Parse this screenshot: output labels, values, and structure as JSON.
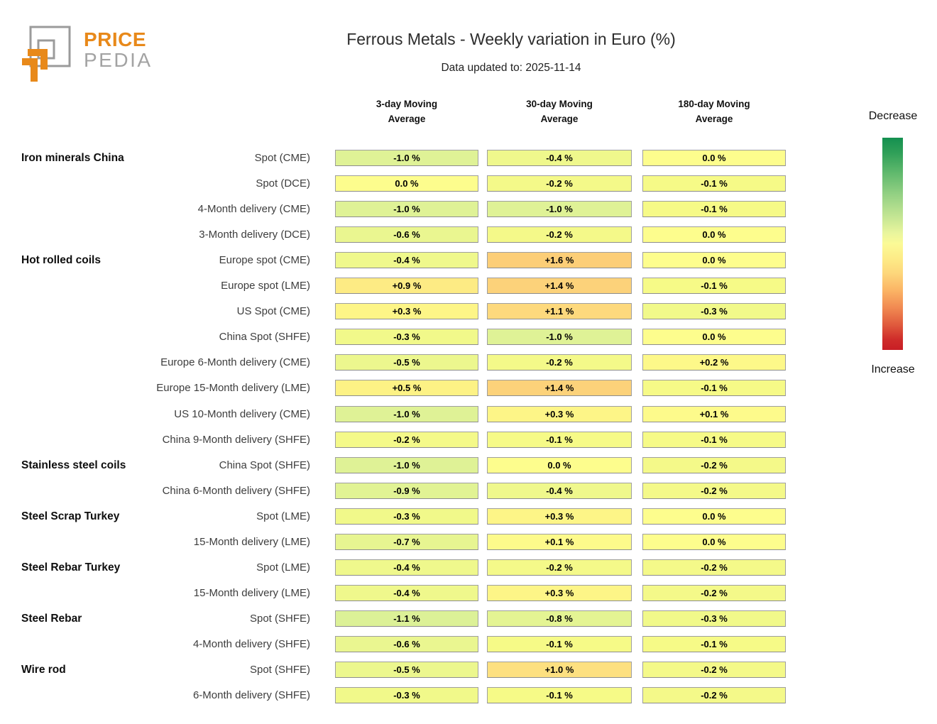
{
  "logo": {
    "line1": "PRICE",
    "line2": "PEDIA",
    "orange": "#e8891a",
    "gray": "#a3a3a3"
  },
  "header": {
    "title": "Ferrous Metals - Weekly variation in Euro (%)",
    "subtitle": "Data updated to: 2025-11-14"
  },
  "column_headers": [
    {
      "line1": "3-day Moving",
      "line2": "Average"
    },
    {
      "line1": "30-day Moving",
      "line2": "Average"
    },
    {
      "line1": "180-day Moving",
      "line2": "Average"
    }
  ],
  "legend": {
    "top_label": "Decrease",
    "bottom_label": "Increase"
  },
  "chart_data": {
    "type": "heatmap",
    "title": "Ferrous Metals - Weekly variation in Euro (%)",
    "subtitle": "Data updated to: 2025-11-14",
    "unit": "% weekly variation in Euro",
    "columns": [
      "3-day Moving Average",
      "30-day Moving Average",
      "180-day Moving Average"
    ],
    "colorscale": {
      "low_label": "Decrease",
      "high_label": "Increase",
      "low_color": "#18964f",
      "mid_color": "#fdfd8d",
      "high_color": "#c81e25",
      "legend_position": "right"
    },
    "rows": [
      {
        "group": "Iron minerals China",
        "label": "Spot (CME)",
        "values": [
          -1.0,
          -0.4,
          0.0
        ],
        "display": [
          "-1.0 %",
          "-0.4 %",
          "0.0 %"
        ]
      },
      {
        "group": "",
        "label": "Spot (DCE)",
        "values": [
          0.0,
          -0.2,
          -0.1
        ],
        "display": [
          "0.0 %",
          "-0.2 %",
          "-0.1 %"
        ]
      },
      {
        "group": "",
        "label": "4-Month delivery (CME)",
        "values": [
          -1.0,
          -1.0,
          -0.1
        ],
        "display": [
          "-1.0 %",
          "-1.0 %",
          "-0.1 %"
        ]
      },
      {
        "group": "",
        "label": "3-Month delivery (DCE)",
        "values": [
          -0.6,
          -0.2,
          0.0
        ],
        "display": [
          "-0.6 %",
          "-0.2 %",
          "0.0 %"
        ]
      },
      {
        "group": "Hot rolled coils",
        "label": "Europe spot (CME)",
        "values": [
          -0.4,
          1.6,
          0.0
        ],
        "display": [
          "-0.4 %",
          "+1.6 %",
          "0.0 %"
        ]
      },
      {
        "group": "",
        "label": "Europe spot (LME)",
        "values": [
          0.9,
          1.4,
          -0.1
        ],
        "display": [
          "+0.9 %",
          "+1.4 %",
          "-0.1 %"
        ]
      },
      {
        "group": "",
        "label": "US Spot (CME)",
        "values": [
          0.3,
          1.1,
          -0.3
        ],
        "display": [
          "+0.3 %",
          "+1.1 %",
          "-0.3 %"
        ]
      },
      {
        "group": "",
        "label": "China Spot (SHFE)",
        "values": [
          -0.3,
          -1.0,
          0.0
        ],
        "display": [
          "-0.3 %",
          "-1.0 %",
          "0.0 %"
        ]
      },
      {
        "group": "",
        "label": "Europe 6-Month delivery (CME)",
        "values": [
          -0.5,
          -0.2,
          0.2
        ],
        "display": [
          "-0.5 %",
          "-0.2 %",
          "+0.2 %"
        ]
      },
      {
        "group": "",
        "label": "Europe 15-Month delivery (LME)",
        "values": [
          0.5,
          1.4,
          -0.1
        ],
        "display": [
          "+0.5 %",
          "+1.4 %",
          "-0.1 %"
        ]
      },
      {
        "group": "",
        "label": "US 10-Month delivery (CME)",
        "values": [
          -1.0,
          0.3,
          0.1
        ],
        "display": [
          "-1.0 %",
          "+0.3 %",
          "+0.1 %"
        ]
      },
      {
        "group": "",
        "label": "China 9-Month delivery (SHFE)",
        "values": [
          -0.2,
          -0.1,
          -0.1
        ],
        "display": [
          "-0.2 %",
          "-0.1 %",
          "-0.1 %"
        ]
      },
      {
        "group": "Stainless steel coils",
        "label": "China Spot (SHFE)",
        "values": [
          -1.0,
          0.0,
          -0.2
        ],
        "display": [
          "-1.0 %",
          "0.0 %",
          "-0.2 %"
        ]
      },
      {
        "group": "",
        "label": "China 6-Month delivery (SHFE)",
        "values": [
          -0.9,
          -0.4,
          -0.2
        ],
        "display": [
          "-0.9 %",
          "-0.4 %",
          "-0.2 %"
        ]
      },
      {
        "group": "Steel Scrap Turkey",
        "label": "Spot (LME)",
        "values": [
          -0.3,
          0.3,
          0.0
        ],
        "display": [
          "-0.3 %",
          "+0.3 %",
          "0.0 %"
        ]
      },
      {
        "group": "",
        "label": "15-Month delivery (LME)",
        "values": [
          -0.7,
          0.1,
          0.0
        ],
        "display": [
          "-0.7 %",
          "+0.1 %",
          "0.0 %"
        ]
      },
      {
        "group": "Steel Rebar Turkey",
        "label": "Spot (LME)",
        "values": [
          -0.4,
          -0.2,
          -0.2
        ],
        "display": [
          "-0.4 %",
          "-0.2 %",
          "-0.2 %"
        ]
      },
      {
        "group": "",
        "label": "15-Month delivery (LME)",
        "values": [
          -0.4,
          0.3,
          -0.2
        ],
        "display": [
          "-0.4 %",
          "+0.3 %",
          "-0.2 %"
        ]
      },
      {
        "group": "Steel Rebar",
        "label": "Spot (SHFE)",
        "values": [
          -1.1,
          -0.8,
          -0.3
        ],
        "display": [
          "-1.1 %",
          "-0.8 %",
          "-0.3 %"
        ]
      },
      {
        "group": "",
        "label": "4-Month delivery (SHFE)",
        "values": [
          -0.6,
          -0.1,
          -0.1
        ],
        "display": [
          "-0.6 %",
          "-0.1 %",
          "-0.1 %"
        ]
      },
      {
        "group": "Wire rod",
        "label": "Spot (SHFE)",
        "values": [
          -0.5,
          1.0,
          -0.2
        ],
        "display": [
          "-0.5 %",
          "+1.0 %",
          "-0.2 %"
        ]
      },
      {
        "group": "",
        "label": "6-Month delivery (SHFE)",
        "values": [
          -0.3,
          -0.1,
          -0.2
        ],
        "display": [
          "-0.3 %",
          "-0.1 %",
          "-0.2 %"
        ]
      }
    ]
  }
}
